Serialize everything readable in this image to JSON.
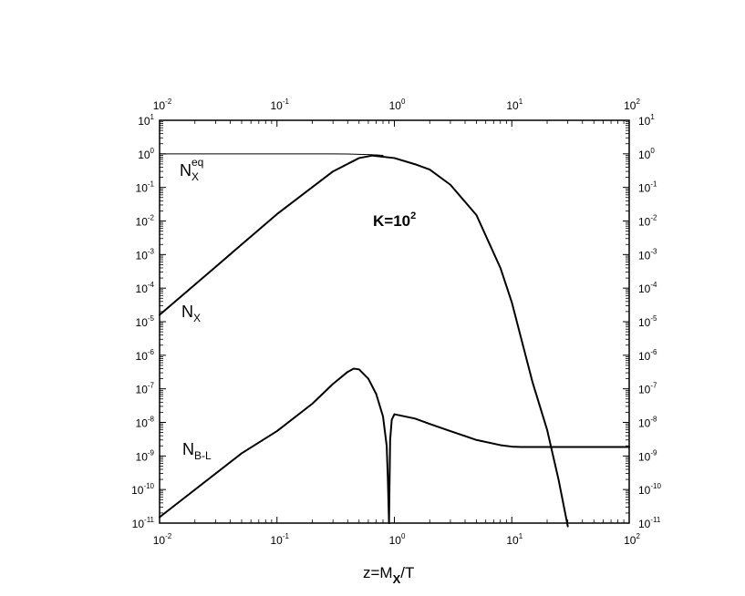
{
  "chart_data": {
    "type": "line",
    "title": "",
    "xlabel": "z=M_X/T",
    "xlabel_parts": {
      "base": "z=M",
      "sub": "X",
      "tail": "/T"
    },
    "ylabel": "",
    "xscale": "log",
    "yscale": "log",
    "xlim": [
      0.01,
      100
    ],
    "ylim": [
      1e-11,
      10
    ],
    "grid": false,
    "legend": "none",
    "x_ticks": [
      {
        "base": "10",
        "exp": "-2"
      },
      {
        "base": "10",
        "exp": "-1"
      },
      {
        "base": "10",
        "exp": "0"
      },
      {
        "base": "10",
        "exp": "1"
      },
      {
        "base": "10",
        "exp": "2"
      }
    ],
    "y_ticks": [
      {
        "base": "10",
        "exp": "1"
      },
      {
        "base": "10",
        "exp": "0"
      },
      {
        "base": "10",
        "exp": "-1"
      },
      {
        "base": "10",
        "exp": "-2"
      },
      {
        "base": "10",
        "exp": "-3"
      },
      {
        "base": "10",
        "exp": "-4"
      },
      {
        "base": "10",
        "exp": "-5"
      },
      {
        "base": "10",
        "exp": "-6"
      },
      {
        "base": "10",
        "exp": "-7"
      },
      {
        "base": "10",
        "exp": "-8"
      },
      {
        "base": "10",
        "exp": "-9"
      },
      {
        "base": "10",
        "exp": "-10"
      },
      {
        "base": "10",
        "exp": "-11"
      }
    ],
    "annotation": {
      "base": "K=10",
      "exp": "2"
    },
    "series": [
      {
        "name": "N_X^eq",
        "label_parts": {
          "base": "N",
          "sub": "X",
          "sup": "eq"
        },
        "stroke_width": 1,
        "x": [
          0.01,
          0.05,
          0.1,
          0.2,
          0.3,
          0.4,
          0.5,
          0.6,
          0.7,
          0.8
        ],
        "y": [
          1.0,
          1.0,
          1.0,
          0.999,
          0.995,
          0.99,
          0.97,
          0.95,
          0.93,
          0.9
        ]
      },
      {
        "name": "N_X",
        "label_parts": {
          "base": "N",
          "sub": "X",
          "sup": ""
        },
        "stroke_width": 2,
        "x": [
          0.01,
          0.03,
          0.1,
          0.3,
          0.5,
          0.65,
          1.0,
          1.5,
          2.0,
          3.0,
          5.0,
          8.0,
          10.0,
          15.0,
          20.0,
          25.0,
          30.0
        ],
        "y": [
          1.6e-05,
          0.00043,
          0.016,
          0.3,
          0.75,
          0.89,
          0.75,
          0.49,
          0.34,
          0.12,
          0.015,
          0.0004,
          3.8e-05,
          1.6e-07,
          6e-09,
          2e-10,
          8e-12
        ]
      },
      {
        "name": "N_B-L",
        "label_parts": {
          "base": "N",
          "sub": "B-L",
          "sup": ""
        },
        "stroke_width": 2,
        "x": [
          0.01,
          0.05,
          0.1,
          0.2,
          0.3,
          0.4,
          0.45,
          0.5,
          0.6,
          0.7,
          0.8,
          0.86,
          0.88,
          0.9,
          0.92,
          0.95,
          1.0,
          1.5,
          2.0,
          3.0,
          5.0,
          8.0,
          10.0,
          12.0,
          15.0,
          20.0,
          50.0,
          100.0
        ],
        "y": [
          1.5e-11,
          1.2e-09,
          5.5e-09,
          3.6e-08,
          1.4e-07,
          3.2e-07,
          4e-07,
          3.8e-07,
          2e-07,
          7e-08,
          1.5e-08,
          2e-09,
          2e-10,
          1e-11,
          3e-09,
          1.2e-08,
          1.75e-08,
          1.3e-08,
          9e-09,
          5.5e-09,
          3e-09,
          2.1e-09,
          1.9e-09,
          1.85e-09,
          1.85e-09,
          1.85e-09,
          1.85e-09,
          1.85e-09
        ]
      }
    ]
  }
}
